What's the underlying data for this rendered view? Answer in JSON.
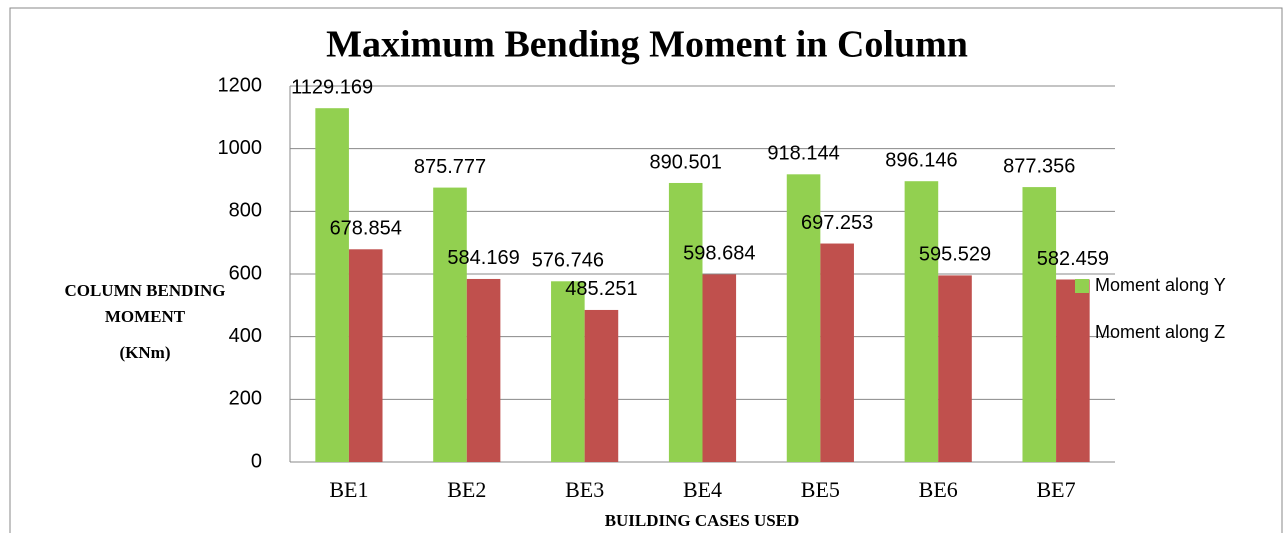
{
  "chart_data": {
    "type": "bar",
    "title": "Maximum Bending Moment in Column",
    "x_label": "BUILDING CASES USED",
    "y_label": [
      "COLUMN BENDING",
      "MOMENT",
      "(KNm)"
    ],
    "categories": [
      "BE1",
      "BE2",
      "BE3",
      "BE4",
      "BE5",
      "BE6",
      "BE7"
    ],
    "series": [
      {
        "name": "Moment along Y",
        "color": "#92d050",
        "values": [
          1129.169,
          875.777,
          576.746,
          890.501,
          918.144,
          896.146,
          877.356
        ]
      },
      {
        "name": "Moment along Z",
        "color": "#c0504d",
        "values": [
          678.854,
          584.169,
          485.251,
          598.684,
          697.253,
          595.529,
          582.459
        ]
      }
    ],
    "ylim": [
      0,
      1200
    ],
    "yticks": [
      0,
      200,
      400,
      600,
      800,
      1000,
      1200
    ],
    "grid": true,
    "legend": "right"
  }
}
